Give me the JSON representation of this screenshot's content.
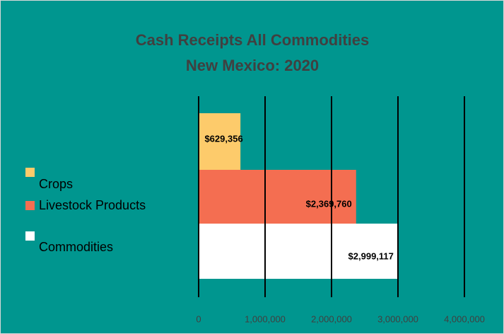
{
  "chart_data": {
    "type": "bar",
    "orientation": "horizontal",
    "title": "Cash Receipts All Commodities",
    "subtitle": "New Mexico: 2020",
    "categories": [
      "Crops",
      "Livestock Products",
      "Commodities"
    ],
    "values": [
      629356,
      2369760,
      2999117
    ],
    "value_labels": [
      "$629,356",
      "$2,369,760",
      "$2,999,117"
    ],
    "colors": [
      "#fdcb6b",
      "#f46e51",
      "#ffffff"
    ],
    "xlim": [
      0,
      4000000
    ],
    "xticks": [
      0,
      {
        "value": 1000000,
        "label": "1,000,000"
      },
      {
        "value": 2000000,
        "label": "2,000,000"
      },
      {
        "value": 3000000,
        "label": "3,000,000"
      },
      {
        "value": 4000000,
        "label": "4,000,000"
      }
    ],
    "grid": true,
    "legend": "left"
  }
}
